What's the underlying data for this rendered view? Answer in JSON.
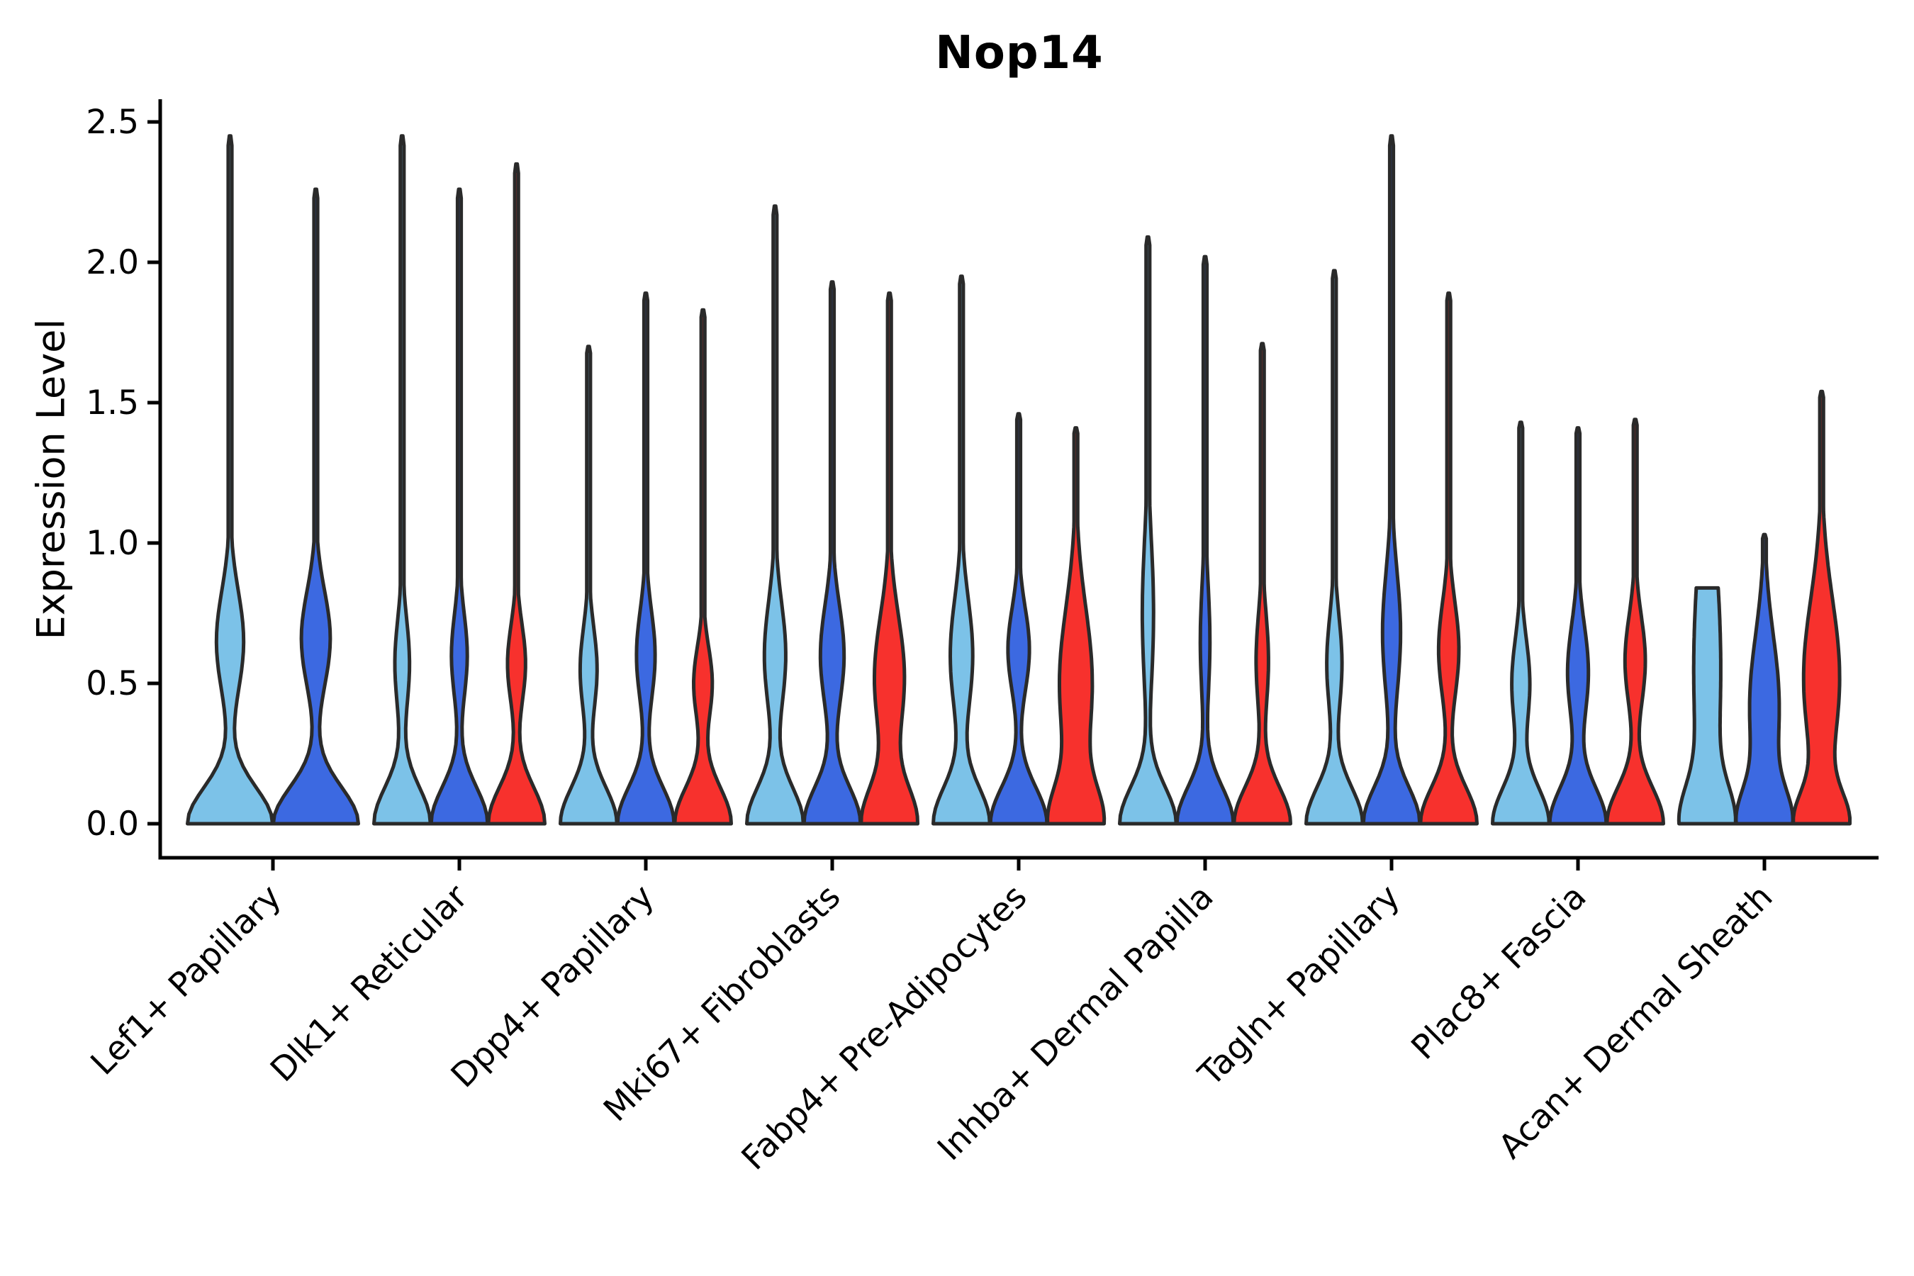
{
  "title": "Nop14",
  "axes": {
    "y_label": "Expression Level"
  },
  "chart_data": {
    "type": "violin",
    "title": "Nop14",
    "xlabel": "",
    "ylabel": "Expression Level",
    "ytick_labels": [
      "0.0",
      "0.5",
      "1.0",
      "1.5",
      "2.0",
      "2.5"
    ],
    "ytick_values": [
      0.0,
      0.5,
      1.0,
      1.5,
      2.0,
      2.5
    ],
    "ylim": [
      0,
      2.6
    ],
    "grid": false,
    "legend_position": "none",
    "colors": {
      "light_blue": "#7CC2E8",
      "dark_blue": "#3C69E1",
      "red": "#F7312D",
      "edge": "#2A2A2A",
      "axis": "#000000"
    },
    "categories": [
      "Lef1+ Papillary",
      "Dlk1+ Reticular",
      "Dpp4+ Papillary",
      "Mki67+ Fibroblasts",
      "Fabp4+ Pre-Adipocytes",
      "Inhba+ Dermal Papilla",
      "Tagln+ Papillary",
      "Plac8+ Fascia",
      "Acan+ Dermal Sheath"
    ],
    "groups": [
      {
        "label": "Lef1+ Papillary",
        "violins": [
          {
            "color": "light_blue",
            "max": 2.45,
            "bulge_center": 0.65,
            "bulge_amp": 0.32,
            "bulge_sigma": 0.18,
            "base_sigma": 0.13
          },
          {
            "color": "dark_blue",
            "max": 2.26,
            "bulge_center": 0.66,
            "bulge_amp": 0.34,
            "bulge_sigma": 0.17,
            "base_sigma": 0.13
          }
        ]
      },
      {
        "label": "Dlk1+ Reticular",
        "violins": [
          {
            "color": "light_blue",
            "max": 2.45,
            "bulge_center": 0.57,
            "bulge_amp": 0.26,
            "bulge_sigma": 0.16,
            "base_sigma": 0.13
          },
          {
            "color": "dark_blue",
            "max": 2.26,
            "bulge_center": 0.6,
            "bulge_amp": 0.28,
            "bulge_sigma": 0.15,
            "base_sigma": 0.13
          },
          {
            "color": "red",
            "max": 2.35,
            "bulge_center": 0.57,
            "bulge_amp": 0.32,
            "bulge_sigma": 0.14,
            "base_sigma": 0.13
          }
        ]
      },
      {
        "label": "Dpp4+ Papillary",
        "violins": [
          {
            "color": "light_blue",
            "max": 1.7,
            "bulge_center": 0.55,
            "bulge_amp": 0.3,
            "bulge_sigma": 0.15,
            "base_sigma": 0.13
          },
          {
            "color": "dark_blue",
            "max": 1.89,
            "bulge_center": 0.6,
            "bulge_amp": 0.33,
            "bulge_sigma": 0.16,
            "base_sigma": 0.13
          },
          {
            "color": "red",
            "max": 1.83,
            "bulge_center": 0.5,
            "bulge_amp": 0.33,
            "bulge_sigma": 0.13,
            "base_sigma": 0.13
          }
        ]
      },
      {
        "label": "Mki67+ Fibroblasts",
        "violins": [
          {
            "color": "light_blue",
            "max": 2.2,
            "bulge_center": 0.6,
            "bulge_amp": 0.38,
            "bulge_sigma": 0.19,
            "base_sigma": 0.13
          },
          {
            "color": "dark_blue",
            "max": 1.93,
            "bulge_center": 0.6,
            "bulge_amp": 0.42,
            "bulge_sigma": 0.18,
            "base_sigma": 0.13
          },
          {
            "color": "red",
            "max": 1.89,
            "bulge_center": 0.52,
            "bulge_amp": 0.55,
            "bulge_sigma": 0.22,
            "base_sigma": 0.13
          }
        ]
      },
      {
        "label": "Fabp4+ Pre-Adipocytes",
        "violins": [
          {
            "color": "light_blue",
            "max": 1.95,
            "bulge_center": 0.6,
            "bulge_amp": 0.4,
            "bulge_sigma": 0.2,
            "base_sigma": 0.13
          },
          {
            "color": "dark_blue",
            "max": 1.46,
            "bulge_center": 0.62,
            "bulge_amp": 0.38,
            "bulge_sigma": 0.15,
            "base_sigma": 0.13
          },
          {
            "color": "red",
            "max": 1.41,
            "bulge_center": 0.5,
            "bulge_amp": 0.65,
            "bulge_sigma": 0.27,
            "base_sigma": 0.13
          }
        ]
      },
      {
        "label": "Inhba+ Dermal Papilla",
        "violins": [
          {
            "color": "light_blue",
            "max": 2.09,
            "bulge_center": 0.75,
            "bulge_amp": 0.2,
            "bulge_sigma": 0.26,
            "base_sigma": 0.13
          },
          {
            "color": "dark_blue",
            "max": 2.02,
            "bulge_center": 0.65,
            "bulge_amp": 0.17,
            "bulge_sigma": 0.21,
            "base_sigma": 0.13
          },
          {
            "color": "red",
            "max": 1.71,
            "bulge_center": 0.58,
            "bulge_amp": 0.22,
            "bulge_sigma": 0.17,
            "base_sigma": 0.13
          }
        ]
      },
      {
        "label": "Tagln+ Papillary",
        "violins": [
          {
            "color": "light_blue",
            "max": 1.97,
            "bulge_center": 0.57,
            "bulge_amp": 0.27,
            "bulge_sigma": 0.17,
            "base_sigma": 0.13
          },
          {
            "color": "dark_blue",
            "max": 2.45,
            "bulge_center": 0.68,
            "bulge_amp": 0.32,
            "bulge_sigma": 0.22,
            "base_sigma": 0.13
          },
          {
            "color": "red",
            "max": 1.89,
            "bulge_center": 0.62,
            "bulge_amp": 0.36,
            "bulge_sigma": 0.17,
            "base_sigma": 0.13
          }
        ]
      },
      {
        "label": "Plac8+ Fascia",
        "violins": [
          {
            "color": "light_blue",
            "max": 1.43,
            "bulge_center": 0.5,
            "bulge_amp": 0.32,
            "bulge_sigma": 0.16,
            "base_sigma": 0.13
          },
          {
            "color": "dark_blue",
            "max": 1.41,
            "bulge_center": 0.54,
            "bulge_amp": 0.37,
            "bulge_sigma": 0.17,
            "base_sigma": 0.13
          },
          {
            "color": "red",
            "max": 1.44,
            "bulge_center": 0.58,
            "bulge_amp": 0.36,
            "bulge_sigma": 0.16,
            "base_sigma": 0.13
          }
        ]
      },
      {
        "label": "Acan+ Dermal Sheath",
        "violins": [
          {
            "color": "light_blue",
            "max": 0.84,
            "bulge_center": 0.55,
            "bulge_amp": 0.62,
            "bulge_sigma": 0.45,
            "base_sigma": 0.13,
            "flat_top": true
          },
          {
            "color": "dark_blue",
            "max": 1.03,
            "bulge_center": 0.42,
            "bulge_amp": 0.6,
            "bulge_sigma": 0.25,
            "base_sigma": 0.12
          },
          {
            "color": "red",
            "max": 1.54,
            "bulge_center": 0.52,
            "bulge_amp": 0.72,
            "bulge_sigma": 0.28,
            "base_sigma": 0.11
          }
        ]
      }
    ]
  }
}
